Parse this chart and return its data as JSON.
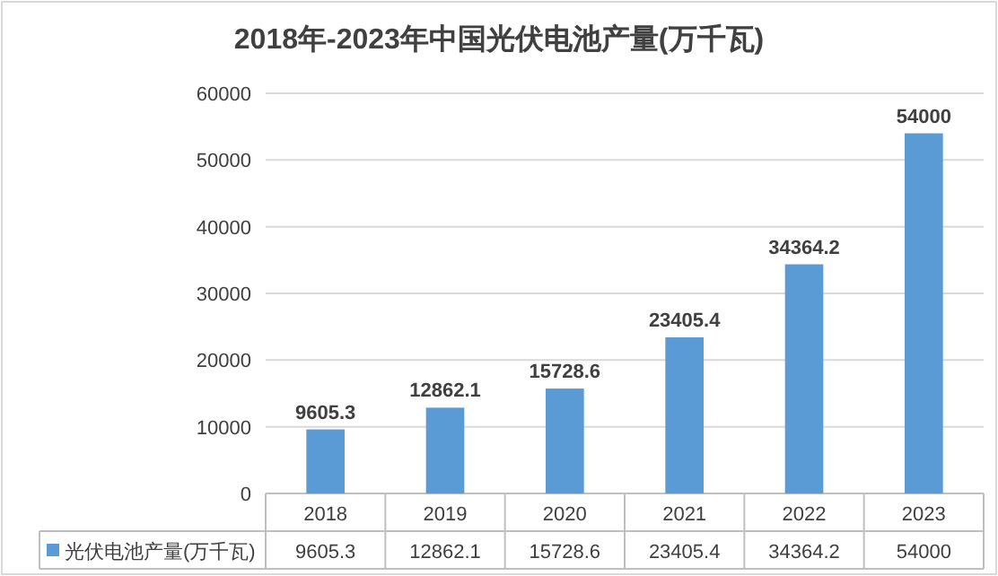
{
  "chart_data": {
    "type": "bar",
    "title": "2018年-2023年中国光伏电池产量(万千瓦)",
    "categories": [
      "2018",
      "2019",
      "2020",
      "2021",
      "2022",
      "2023"
    ],
    "series": [
      {
        "name": "光伏电池产量(万千瓦)",
        "color": "#5b9bd5",
        "values": [
          9605.3,
          12862.1,
          15728.6,
          23405.4,
          34364.2,
          54000
        ],
        "value_labels": [
          "9605.3",
          "12862.1",
          "15728.6",
          "23405.4",
          "34364.2",
          "54000"
        ]
      }
    ],
    "ylim": [
      0,
      60000
    ],
    "yticks": [
      0,
      10000,
      20000,
      30000,
      40000,
      50000,
      60000
    ],
    "annotations": [
      "9605.3",
      "12862.1",
      "15728.6",
      "23405.4",
      "34364.2",
      "54000"
    ],
    "grid": "y",
    "legend": "bottom"
  }
}
